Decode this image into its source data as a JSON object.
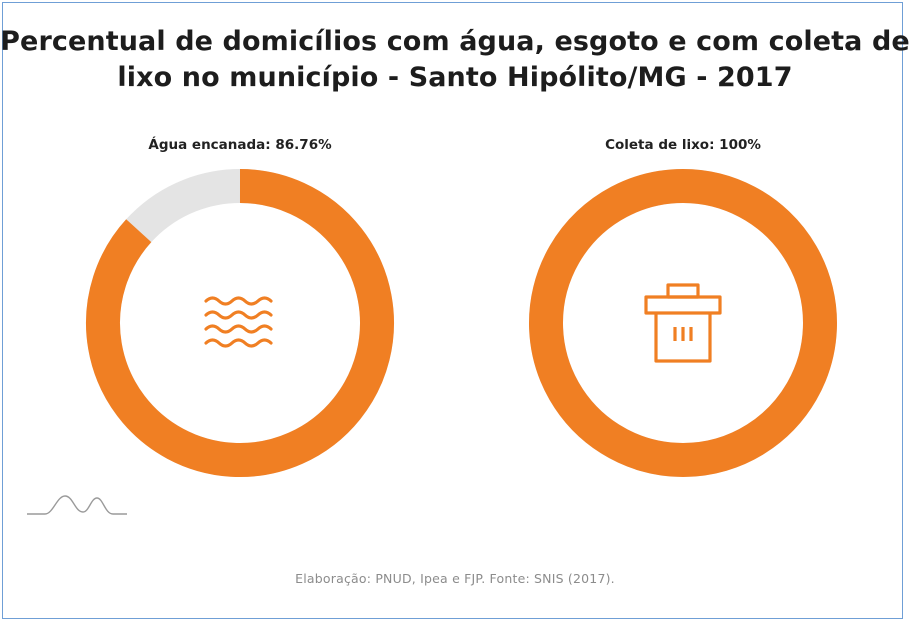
{
  "title": "Percentual de domicílios com água, esgoto e com coleta de lixo no município - Santo Hipólito/MG - 2017",
  "source": "Elaboração: PNUD, Ipea e FJP. Fonte: SNIS (2017).",
  "colors": {
    "accent": "#f07f23",
    "remainder": "#e4e4e4",
    "frame": "#6f9fd6"
  },
  "chart_data": [
    {
      "type": "pie",
      "variant": "donut",
      "label": "Água encanada: 86.76%",
      "value": 86.76,
      "max": 100,
      "icon": "water-waves-icon"
    },
    {
      "type": "pie",
      "variant": "donut",
      "label": "Coleta de lixo: 100%",
      "value": 100,
      "max": 100,
      "icon": "trash-can-icon"
    }
  ]
}
